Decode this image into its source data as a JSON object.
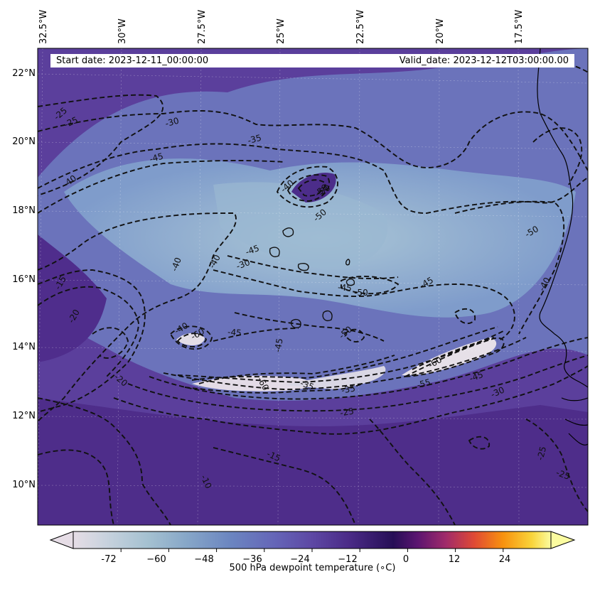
{
  "header": {
    "start_date": "Start date: 2023-12-11_00:00:00",
    "valid_date": "Valid_date: 2023-12-12T03:00:00.00"
  },
  "map": {
    "region": {
      "lon_range": [
        -32.7,
        -15.5
      ],
      "lat_range": [
        8.9,
        22.8
      ]
    },
    "lon_ticks": [
      "32.5°W",
      "30°W",
      "27.5°W",
      "25°W",
      "22.5°W",
      "20°W",
      "17.5°W"
    ],
    "lat_ticks": [
      "22°N",
      "20°N",
      "18°N",
      "16°N",
      "14°N",
      "12°N",
      "10°N"
    ],
    "field_colors": {
      "background": "#5a3f9a",
      "mid": "#6f7fbe",
      "pale": "#a7c2d3",
      "extreme_low": "#e5dce6"
    },
    "contour_labels": [
      "-25",
      "-25",
      "-30",
      "-35",
      "-45",
      "-40",
      "-40",
      "-50",
      "-50",
      "-50",
      "-45",
      "-30",
      "-40",
      "-15",
      "-20",
      "-40",
      "-45",
      "-40",
      "-45",
      "-50",
      "-50",
      "-45",
      "-35",
      "-30",
      "-20",
      "-25",
      "-15",
      "-10",
      "-25",
      "-25",
      "-60",
      "-50",
      "-45",
      "-40",
      "-35",
      "-45",
      "-55",
      "-60",
      "-60"
    ]
  },
  "colorbar": {
    "ticks": [
      "-72",
      "−60",
      "−48",
      "−36",
      "−24",
      "−12",
      "0",
      "12",
      "24"
    ],
    "label": "500 hPa dewpoint temperature (∘C)",
    "range": [
      -84,
      36
    ],
    "extend": "both"
  }
}
